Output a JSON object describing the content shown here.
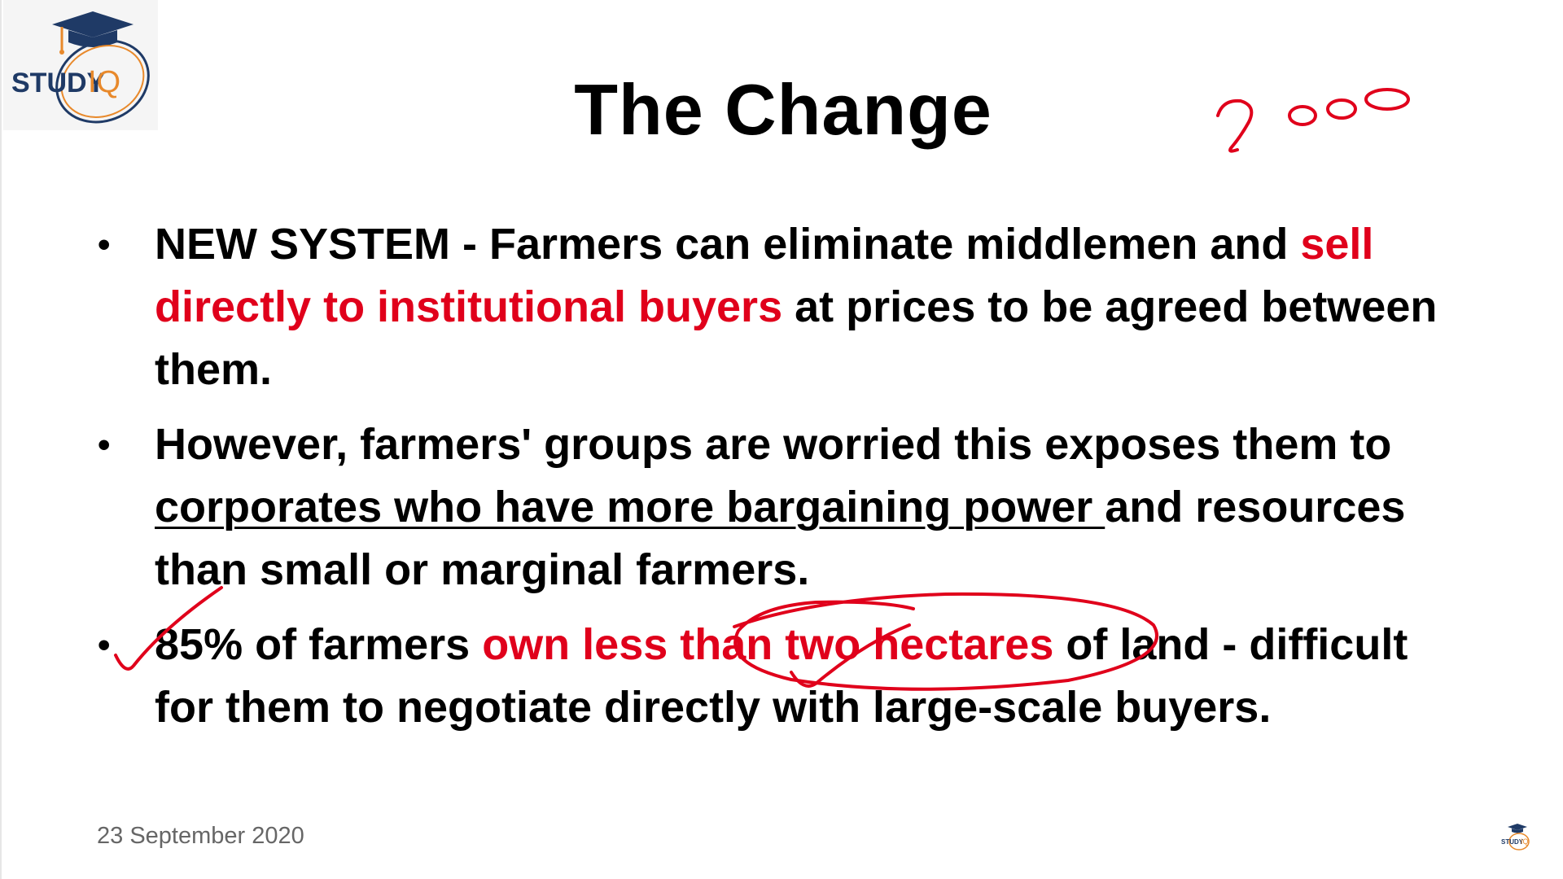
{
  "logo": {
    "wordmark_left": "STUDY",
    "wordmark_right": "IQ",
    "icon": "graduation-cap-icon",
    "colors": {
      "navy": "#1f3a66",
      "orange": "#e8892b",
      "cap": "#1f3a66"
    }
  },
  "title": "The Change",
  "bullets": [
    {
      "parts": [
        {
          "text": "NEW SYSTEM -  Farmers can eliminate middlemen and ",
          "style": "normal"
        },
        {
          "text": "sell directly to institutional buyers",
          "style": "red"
        },
        {
          "text": " at prices to be agreed between them.",
          "style": "normal"
        }
      ]
    },
    {
      "parts": [
        {
          "text": "However, farmers' groups are worried this exposes them to ",
          "style": "normal"
        },
        {
          "text": "corporates who have more bargaining power ",
          "style": "underline"
        },
        {
          "text": "and resources than small or marginal farmers.",
          "style": "normal"
        }
      ]
    },
    {
      "parts": [
        {
          "text": "85% of farmers ",
          "style": "normal"
        },
        {
          "text": "own less than two hectares",
          "style": "red"
        },
        {
          "text": " of land - difficult for them to negotiate directly with large-scale buyers.",
          "style": "normal"
        }
      ]
    }
  ],
  "footer": {
    "date": "23 September 2020",
    "mini_logo_icon": "studyiq-mini-logo-icon"
  },
  "annotations": {
    "handwritten_number": "2000",
    "ink_color": "#e0001b",
    "marks": [
      "handwritten-2000",
      "checkmark-bullet-3",
      "circle-two-hectares",
      "checkmark-two"
    ]
  },
  "colors": {
    "accent_red": "#e0001b",
    "text": "#000000",
    "footer_text": "#666666"
  }
}
